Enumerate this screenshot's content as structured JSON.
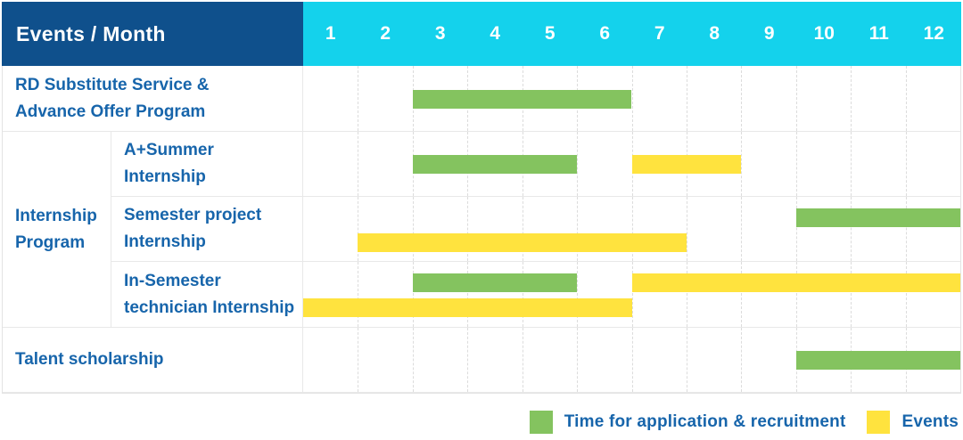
{
  "header": {
    "corner_label": "Events / Month",
    "months": [
      "1",
      "2",
      "3",
      "4",
      "5",
      "6",
      "7",
      "8",
      "9",
      "10",
      "11",
      "12"
    ]
  },
  "colors": {
    "header_bg": "#0f508c",
    "months_bg": "#14d2ec",
    "text": "#1765ab",
    "green": "#84c35f",
    "yellow": "#ffe33e"
  },
  "legend": {
    "items": [
      {
        "key": "application",
        "color": "green",
        "label": "Time for application & recruitment"
      },
      {
        "key": "events",
        "color": "yellow",
        "label": "Events"
      }
    ]
  },
  "chart_data": {
    "type": "bar",
    "subtype": "gantt",
    "orientation": "horizontal",
    "title": "Events / Month",
    "xlabel": "Month",
    "x_ticks": [
      1,
      2,
      3,
      4,
      5,
      6,
      7,
      8,
      9,
      10,
      11,
      12
    ],
    "x_range": [
      1,
      12
    ],
    "grid": "vertical-dashed",
    "legend_position": "bottom-right",
    "series_legend": {
      "green": "Time for application & recruitment",
      "yellow": "Events"
    },
    "group_label": "Internship\nProgram",
    "rows": [
      {
        "label": "RD Substitute Service &\nAdvance Offer Program",
        "group": null,
        "bars": [
          {
            "series": "Time for application & recruitment",
            "color": "green",
            "start_month": 3,
            "end_month": 6,
            "lane": "center"
          }
        ]
      },
      {
        "label": "A+Summer\nInternship",
        "group": "Internship Program",
        "bars": [
          {
            "series": "Time for application & recruitment",
            "color": "green",
            "start_month": 3,
            "end_month": 5,
            "lane": "center"
          },
          {
            "series": "Events",
            "color": "yellow",
            "start_month": 7,
            "end_month": 8,
            "lane": "center"
          }
        ]
      },
      {
        "label": "Semester project\nInternship",
        "group": "Internship Program",
        "bars": [
          {
            "series": "Time for application & recruitment",
            "color": "green",
            "start_month": 10,
            "end_month": 12,
            "lane": "top"
          },
          {
            "series": "Events",
            "color": "yellow",
            "start_month": 2,
            "end_month": 7,
            "lane": "bottom"
          }
        ]
      },
      {
        "label": "In-Semester\ntechnician Internship",
        "group": "Internship Program",
        "bars": [
          {
            "series": "Time for application & recruitment",
            "color": "green",
            "start_month": 3,
            "end_month": 5,
            "lane": "top"
          },
          {
            "series": "Events",
            "color": "yellow",
            "start_month": 7,
            "end_month": 12,
            "lane": "top"
          },
          {
            "series": "Events",
            "color": "yellow",
            "start_month": 1,
            "end_month": 6,
            "lane": "bottom"
          }
        ]
      },
      {
        "label": "Talent scholarship",
        "group": null,
        "bars": [
          {
            "series": "Time for application & recruitment",
            "color": "green",
            "start_month": 10,
            "end_month": 12,
            "lane": "center"
          }
        ]
      }
    ]
  }
}
